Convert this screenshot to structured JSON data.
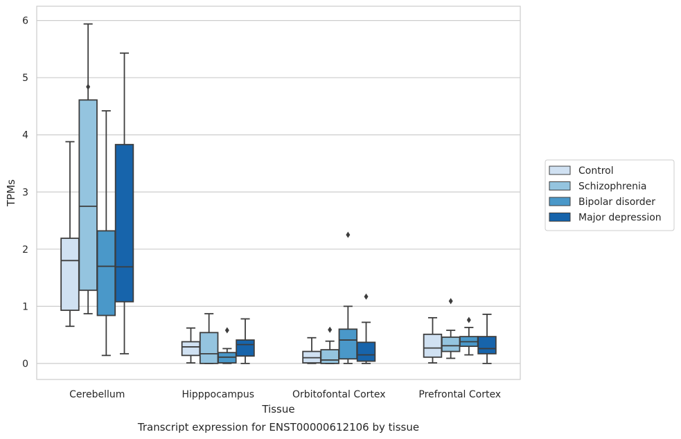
{
  "chart_data": {
    "type": "box",
    "title": "",
    "caption": "Transcript expression for ENST00000612106 by tissue",
    "xlabel": "Tissue",
    "ylabel": "TPMs",
    "ylim": [
      -0.28,
      6.25
    ],
    "yticks": [
      0,
      1,
      2,
      3,
      4,
      5,
      6
    ],
    "grid": true,
    "legend_position": "right",
    "categories": [
      "Cerebellum",
      "Hipppocampus",
      "Orbitofontal Cortex",
      "Prefrontal Cortex"
    ],
    "series": [
      {
        "name": "Control",
        "color": "#d0e1f2",
        "boxes": [
          {
            "whislo": 0.65,
            "q1": 0.93,
            "med": 1.8,
            "q3": 2.19,
            "whishi": 3.88,
            "fliers": []
          },
          {
            "whislo": 0.01,
            "q1": 0.14,
            "med": 0.29,
            "q3": 0.38,
            "whishi": 0.62,
            "fliers": []
          },
          {
            "whislo": 0.0,
            "q1": 0.01,
            "med": 0.1,
            "q3": 0.21,
            "whishi": 0.45,
            "fliers": []
          },
          {
            "whislo": 0.01,
            "q1": 0.11,
            "med": 0.27,
            "q3": 0.51,
            "whishi": 0.8,
            "fliers": []
          }
        ]
      },
      {
        "name": "Schizophrenia",
        "color": "#94c4df",
        "boxes": [
          {
            "whislo": 0.87,
            "q1": 1.28,
            "med": 2.75,
            "q3": 4.61,
            "whishi": 5.94,
            "fliers": [
              4.84
            ]
          },
          {
            "whislo": 0.0,
            "q1": 0.0,
            "med": 0.17,
            "q3": 0.54,
            "whishi": 0.87,
            "fliers": []
          },
          {
            "whislo": 0.0,
            "q1": 0.0,
            "med": 0.06,
            "q3": 0.24,
            "whishi": 0.39,
            "fliers": [
              0.59
            ]
          },
          {
            "whislo": 0.09,
            "q1": 0.21,
            "med": 0.31,
            "q3": 0.46,
            "whishi": 0.58,
            "fliers": [
              1.09
            ]
          }
        ]
      },
      {
        "name": "Bipolar disorder",
        "color": "#4a98c9",
        "boxes": [
          {
            "whislo": 0.14,
            "q1": 0.84,
            "med": 1.7,
            "q3": 2.32,
            "whishi": 4.42,
            "fliers": []
          },
          {
            "whislo": 0.0,
            "q1": 0.01,
            "med": 0.11,
            "q3": 0.19,
            "whishi": 0.26,
            "fliers": [
              0.58
            ]
          },
          {
            "whislo": 0.0,
            "q1": 0.08,
            "med": 0.41,
            "q3": 0.6,
            "whishi": 1.0,
            "fliers": [
              2.25
            ]
          },
          {
            "whislo": 0.15,
            "q1": 0.3,
            "med": 0.38,
            "q3": 0.47,
            "whishi": 0.63,
            "fliers": [
              0.76
            ]
          }
        ]
      },
      {
        "name": "Major depression",
        "color": "#1764ab",
        "boxes": [
          {
            "whislo": 0.17,
            "q1": 1.08,
            "med": 1.69,
            "q3": 3.83,
            "whishi": 5.43,
            "fliers": []
          },
          {
            "whislo": 0.0,
            "q1": 0.13,
            "med": 0.33,
            "q3": 0.41,
            "whishi": 0.78,
            "fliers": []
          },
          {
            "whislo": 0.0,
            "q1": 0.04,
            "med": 0.15,
            "q3": 0.37,
            "whishi": 0.72,
            "fliers": [
              1.17
            ]
          },
          {
            "whislo": 0.0,
            "q1": 0.17,
            "med": 0.26,
            "q3": 0.47,
            "whishi": 0.86,
            "fliers": []
          }
        ]
      }
    ]
  }
}
